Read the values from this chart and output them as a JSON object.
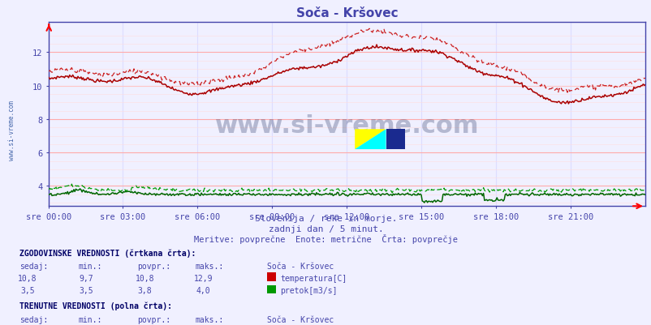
{
  "title": "Soča - Kršovec",
  "title_color": "#4444aa",
  "bg_color": "#f0f0ff",
  "plot_bg_color": "#f0f0ff",
  "grid_color_major": "#ffaaaa",
  "grid_color_minor": "#ffdddd",
  "grid_vert_color": "#ddddff",
  "xlabel_ticks": [
    "sre 00:00",
    "sre 03:00",
    "sre 06:00",
    "sre 09:00",
    "sre 12:00",
    "sre 15:00",
    "sre 18:00",
    "sre 21:00"
  ],
  "tick_positions_frac": [
    0.0,
    0.125,
    0.25,
    0.375,
    0.5,
    0.625,
    0.75,
    0.875
  ],
  "n_points": 576,
  "ylim": [
    2.8,
    13.8
  ],
  "yticks": [
    4,
    6,
    8,
    10,
    12
  ],
  "subtitle1": "Slovenija / reke in morje.",
  "subtitle2": "zadnji dan / 5 minut.",
  "subtitle3": "Meritve: povprečne  Enote: metrične  Črta: povprečje",
  "subtitle_color": "#4444aa",
  "watermark_text": "www.si-vreme.com",
  "watermark_color": "#1a2a5a",
  "left_label": "www.si-vreme.com",
  "left_label_color": "#4466aa",
  "temp_color_solid": "#aa0000",
  "temp_color_dashed": "#cc2222",
  "flow_color_solid": "#006600",
  "flow_color_dashed": "#009900",
  "axis_color": "#4444aa",
  "tick_color": "#4444aa",
  "spine_color": "#4444aa"
}
